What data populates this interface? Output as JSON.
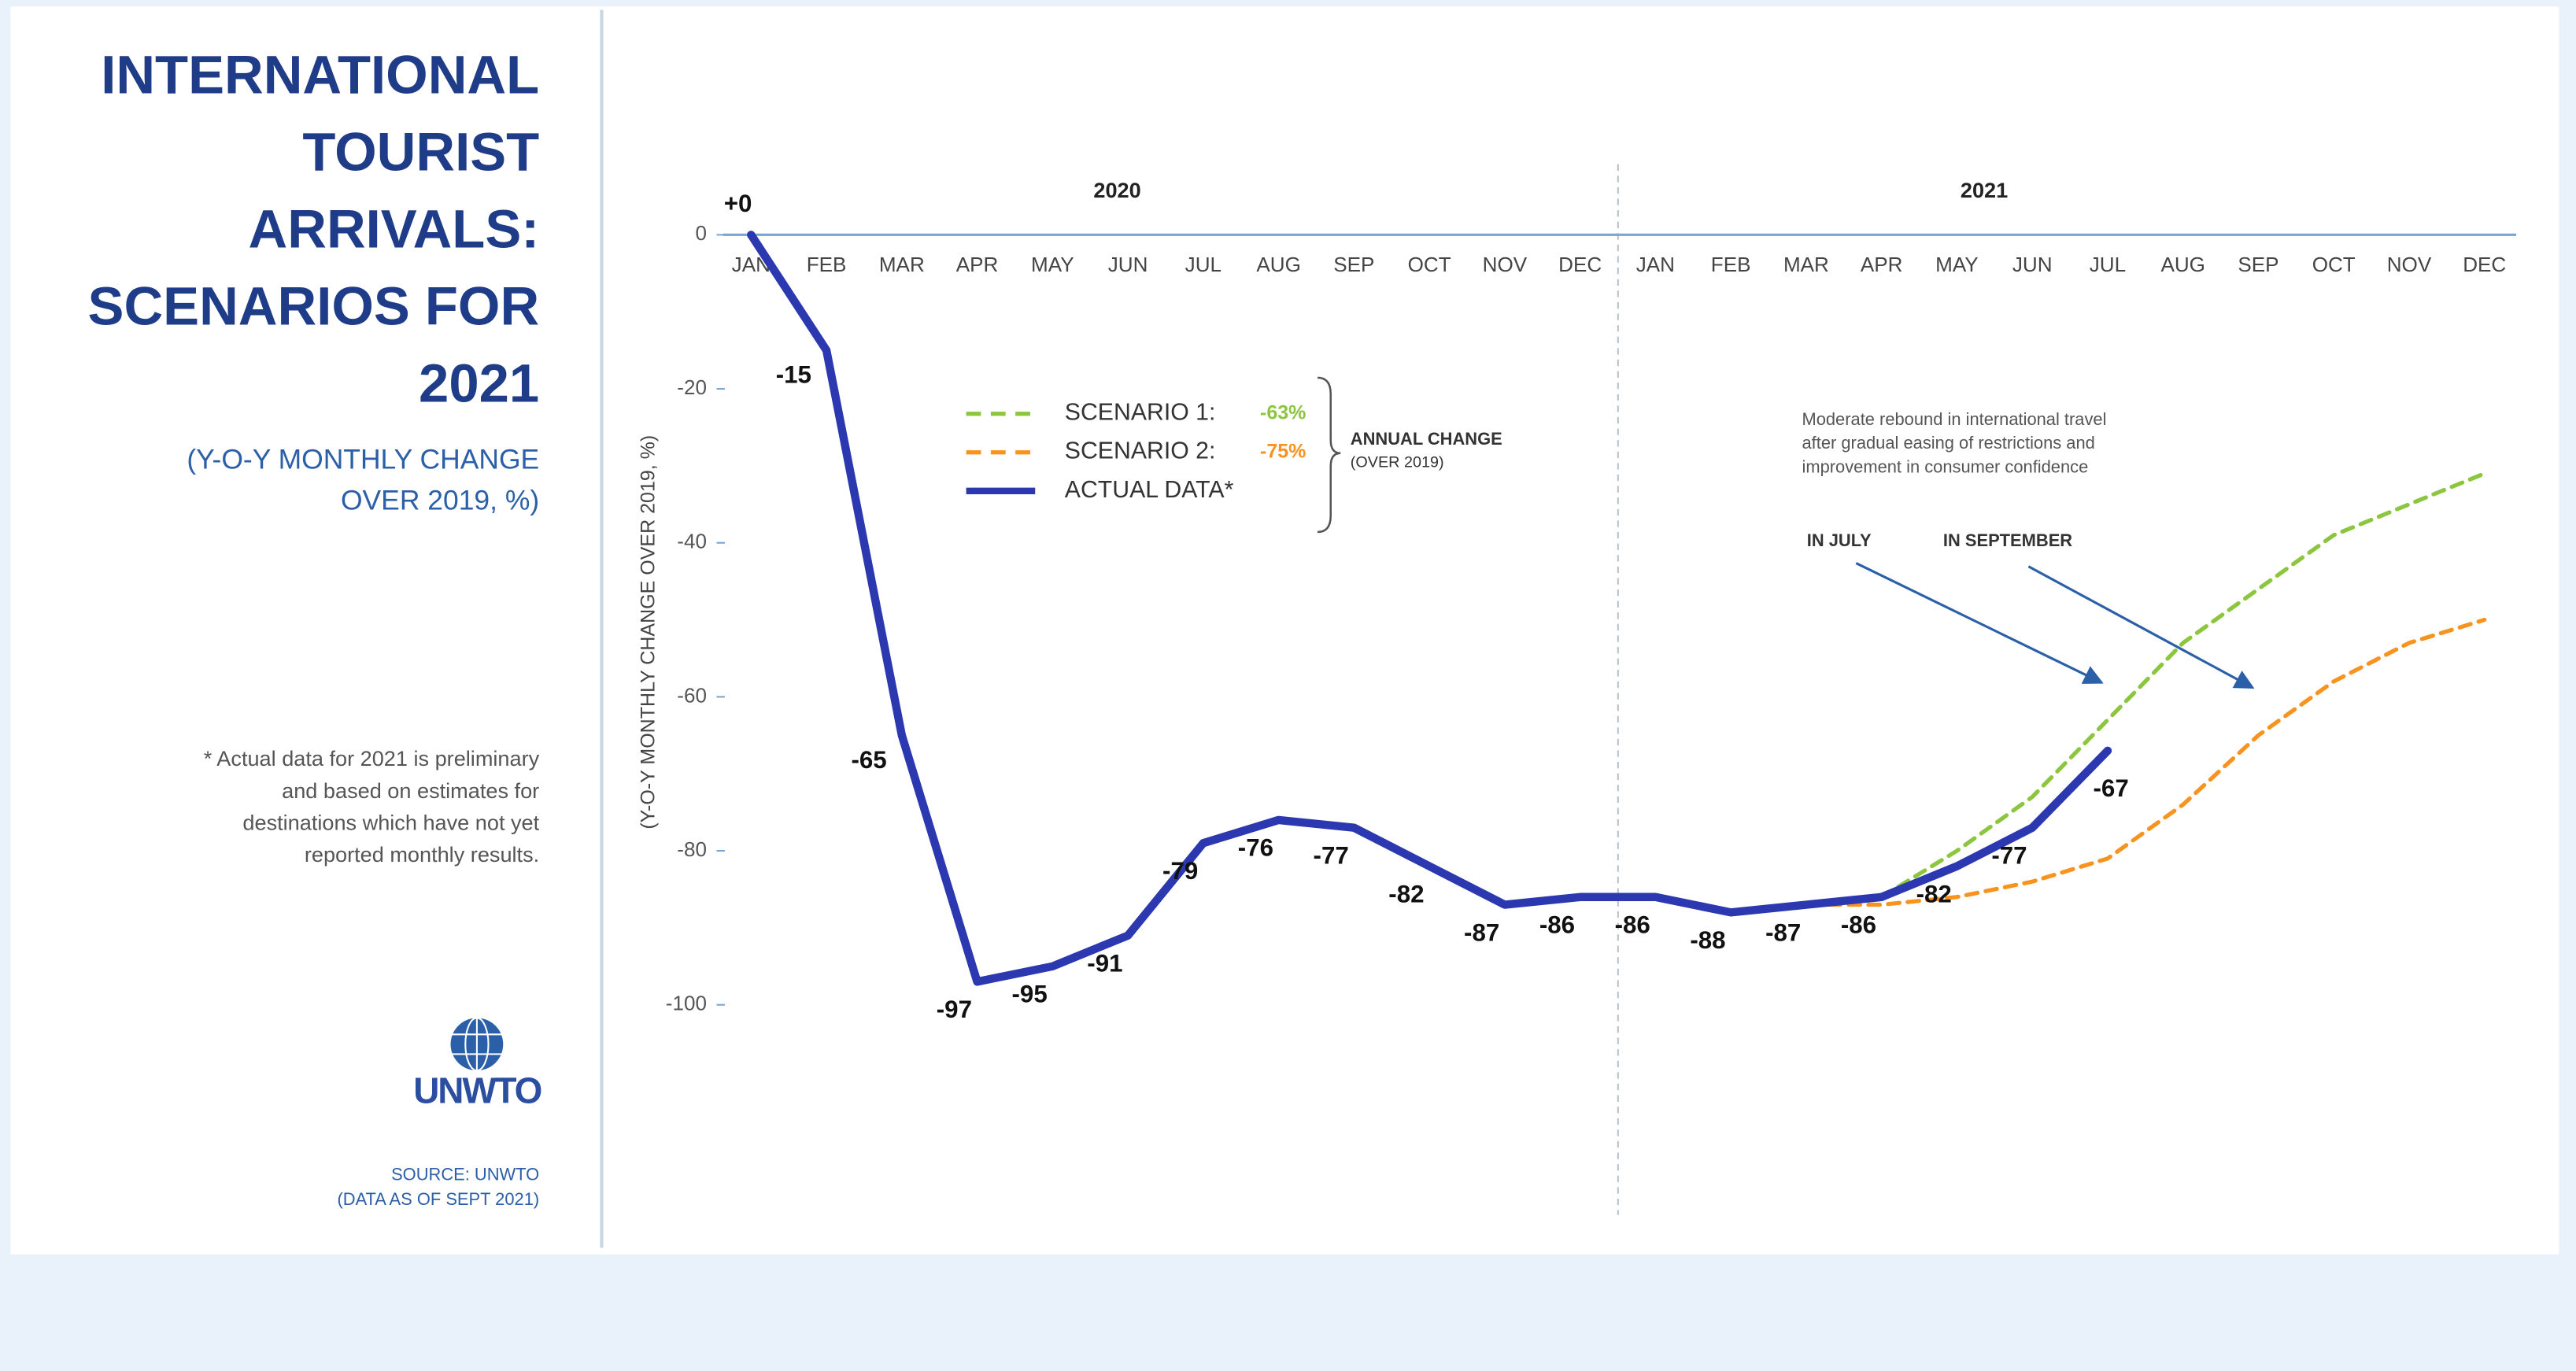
{
  "chart_data": {
    "type": "line",
    "title": [
      "INTERNATIONAL",
      "TOURIST",
      "ARRIVALS:",
      "SCENARIOS FOR",
      "2021"
    ],
    "subtitle": [
      "(Y-O-Y MONTHLY CHANGE",
      "OVER 2019, %)"
    ],
    "note": [
      "* Actual data for 2021 is preliminary",
      "and based on estimates for",
      "destinations which have not yet",
      "reported monthly results."
    ],
    "logo": "UNWTO",
    "source": [
      "SOURCE: UNWTO",
      "(DATA AS OF SEPT 2021)"
    ],
    "y_label": "(Y-O-Y MONTHLY CHANGE OVER 2019, %)",
    "years": [
      "2020",
      "2021"
    ],
    "categories": [
      "JAN",
      "FEB",
      "MAR",
      "APR",
      "MAY",
      "JUN",
      "JUL",
      "AUG",
      "SEP",
      "OCT",
      "NOV",
      "DEC",
      "JAN",
      "FEB",
      "MAR",
      "APR",
      "MAY",
      "JUN",
      "JUL",
      "AUG",
      "SEP",
      "OCT",
      "NOV",
      "DEC"
    ],
    "ylim": [
      -127,
      9
    ],
    "yticks": [
      0,
      -20,
      -40,
      -60,
      -80,
      -100
    ],
    "legend_note": [
      "ANNUAL CHANGE",
      "(OVER 2019)"
    ],
    "annotation": [
      "Moderate rebound in international travel",
      "after gradual easing of restrictions and",
      "improvement in consumer confidence"
    ],
    "arrow_labels": [
      "IN JULY",
      "IN SEPTEMBER"
    ],
    "series": [
      {
        "name": "SCENARIO 1:",
        "annual_change": "-63%",
        "color": "#8cc63f",
        "dashed": true,
        "values": [
          null,
          null,
          null,
          null,
          null,
          null,
          null,
          null,
          null,
          null,
          null,
          null,
          null,
          null,
          null,
          -86,
          -80,
          -73,
          -63,
          -53,
          -46,
          -39,
          -35,
          -31
        ]
      },
      {
        "name": "SCENARIO 2:",
        "annual_change": "-75%",
        "color": "#f7931e",
        "dashed": true,
        "values": [
          null,
          null,
          null,
          null,
          null,
          null,
          null,
          null,
          null,
          null,
          null,
          null,
          null,
          -88,
          -87,
          -87,
          -86,
          -84,
          -81,
          -74,
          -65,
          -58,
          -53,
          -50
        ]
      },
      {
        "name": "ACTUAL DATA*",
        "color": "#2b38b0",
        "dashed": false,
        "values": [
          0,
          -15,
          -65,
          -97,
          -95,
          -91,
          -79,
          -76,
          -77,
          -82,
          -87,
          -86,
          -86,
          -88,
          -87,
          -86,
          -82,
          -77,
          -67,
          null,
          null,
          null,
          null,
          null
        ],
        "value_labels": [
          "+0",
          "-15",
          "-65",
          "-97",
          "-95",
          "-91",
          "-79",
          "-76",
          "-77",
          "-82",
          "-87",
          "-86",
          "-86",
          "-88",
          "-87",
          "-86",
          "-82",
          "-77",
          "-67",
          null,
          null,
          null,
          null,
          null
        ]
      }
    ]
  }
}
